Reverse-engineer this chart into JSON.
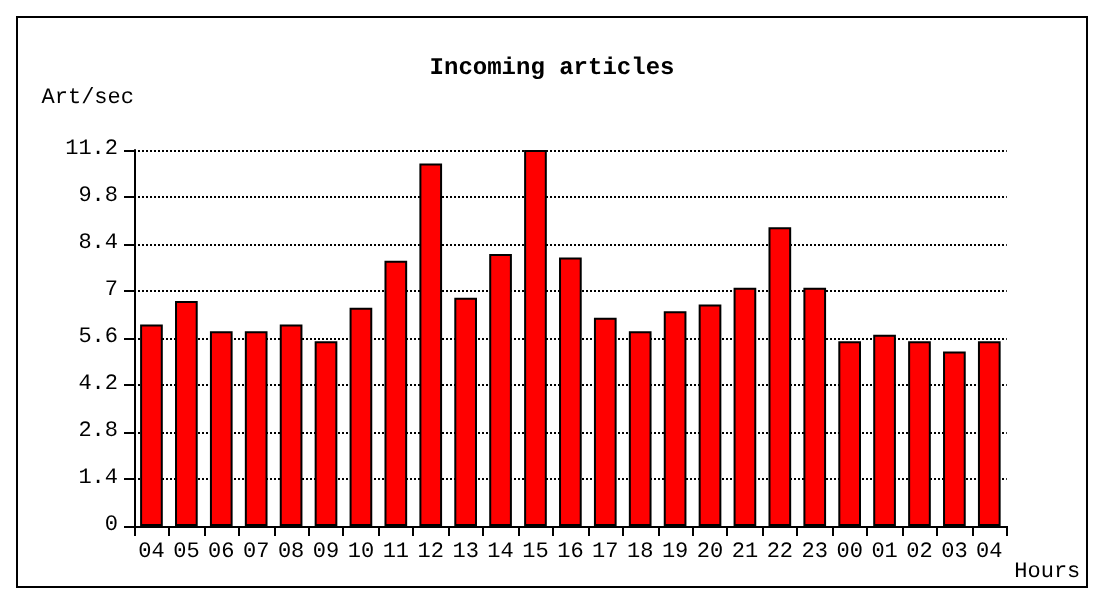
{
  "chart_data": {
    "type": "bar",
    "title": "Incoming articles",
    "xlabel": "Hours",
    "ylabel": "Art/sec",
    "categories": [
      "04",
      "05",
      "06",
      "07",
      "08",
      "09",
      "10",
      "11",
      "12",
      "13",
      "14",
      "15",
      "16",
      "17",
      "18",
      "19",
      "20",
      "21",
      "22",
      "23",
      "00",
      "01",
      "02",
      "03",
      "04"
    ],
    "values": [
      6.0,
      6.7,
      5.8,
      5.8,
      6.0,
      5.5,
      6.5,
      7.9,
      10.8,
      6.8,
      8.1,
      11.2,
      8.0,
      6.2,
      5.8,
      6.4,
      6.6,
      7.1,
      8.9,
      7.1,
      5.5,
      5.7,
      5.5,
      5.2,
      5.5
    ],
    "color": "#ff0000",
    "ylim": [
      0,
      11.2
    ],
    "yticks": [
      0,
      1.4,
      2.8,
      4.2,
      5.6,
      7,
      8.4,
      9.8,
      11.2
    ],
    "grid": "y",
    "line_style": "dotted"
  }
}
